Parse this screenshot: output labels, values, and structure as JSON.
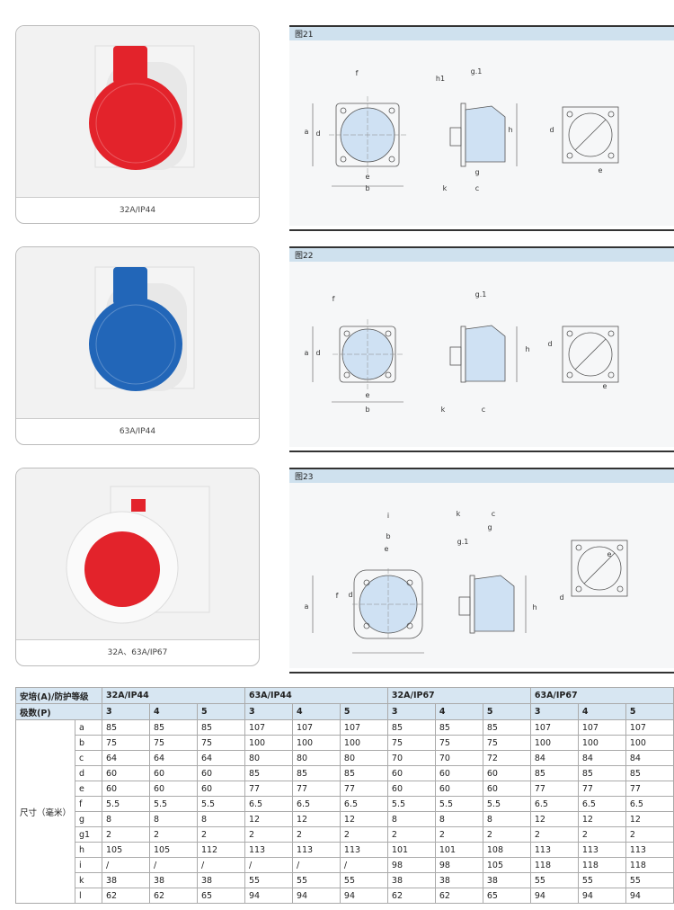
{
  "products": [
    {
      "caption": "32A/IP44"
    },
    {
      "caption": "63A/IP44"
    },
    {
      "caption": "32A、63A/IP67"
    }
  ],
  "diagrams": [
    {
      "title": "图21",
      "labels": [
        "f",
        "a",
        "d",
        "e",
        "b",
        "h1",
        "g.1",
        "h",
        "k",
        "g",
        "c",
        "d",
        "e"
      ]
    },
    {
      "title": "图22",
      "labels": [
        "f",
        "a",
        "d",
        "e",
        "b",
        "g.1",
        "h",
        "k",
        "c",
        "d",
        "e"
      ]
    },
    {
      "title": "图23",
      "labels": [
        "i",
        "b",
        "e",
        "a",
        "f",
        "d",
        "k",
        "c",
        "g",
        "g.1",
        "h",
        "e",
        "d"
      ]
    }
  ],
  "table": {
    "header": [
      "安培(A)/防护等级",
      "32A/IP44",
      "63A/IP44",
      "32A/IP67",
      "63A/IP67"
    ],
    "poles_label": "极数(P)",
    "poles": [
      3,
      4,
      5,
      3,
      4,
      5,
      3,
      4,
      5,
      3,
      4,
      5
    ],
    "dimension_label": "尺寸（毫米）",
    "rows": [
      {
        "key": "a",
        "values": [
          85,
          85,
          85,
          107,
          107,
          107,
          85,
          85,
          85,
          107,
          107,
          107
        ]
      },
      {
        "key": "b",
        "values": [
          75,
          75,
          75,
          100,
          100,
          100,
          75,
          75,
          75,
          100,
          100,
          100
        ]
      },
      {
        "key": "c",
        "values": [
          64,
          64,
          64,
          80,
          80,
          80,
          70,
          70,
          72,
          84,
          84,
          84
        ]
      },
      {
        "key": "d",
        "values": [
          60,
          60,
          60,
          85,
          85,
          85,
          60,
          60,
          60,
          85,
          85,
          85
        ]
      },
      {
        "key": "e",
        "values": [
          60,
          60,
          60,
          77,
          77,
          77,
          60,
          60,
          60,
          77,
          77,
          77
        ]
      },
      {
        "key": "f",
        "values": [
          5.5,
          5.5,
          5.5,
          6.5,
          6.5,
          6.5,
          5.5,
          5.5,
          5.5,
          6.5,
          6.5,
          6.5
        ]
      },
      {
        "key": "g",
        "values": [
          8,
          8,
          8,
          12,
          12,
          12,
          8,
          8,
          8,
          12,
          12,
          12
        ]
      },
      {
        "key": "g1",
        "values": [
          2,
          2,
          2,
          2,
          2,
          2,
          2,
          2,
          2,
          2,
          2,
          2
        ]
      },
      {
        "key": "h",
        "values": [
          105,
          105,
          112,
          113,
          113,
          113,
          101,
          101,
          108,
          113,
          113,
          113
        ]
      },
      {
        "key": "i",
        "values": [
          "/",
          "/",
          "/",
          "/",
          "/",
          "/",
          98,
          98,
          105,
          118,
          118,
          118
        ]
      },
      {
        "key": "k",
        "values": [
          38,
          38,
          38,
          55,
          55,
          55,
          38,
          38,
          38,
          55,
          55,
          55
        ]
      },
      {
        "key": "l",
        "values": [
          62,
          62,
          65,
          94,
          94,
          94,
          62,
          62,
          65,
          94,
          94,
          94
        ]
      }
    ]
  }
}
